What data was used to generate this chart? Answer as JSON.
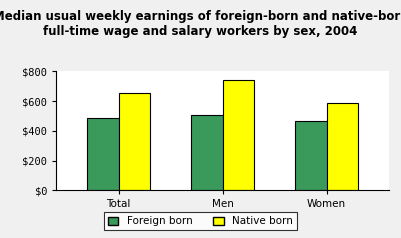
{
  "title_line1": "Median usual weekly earnings of foreign-born and native-born",
  "title_line2": "full-time wage and salary workers by sex, 2004",
  "categories": [
    "Total",
    "Men",
    "Women"
  ],
  "foreign_born": [
    490,
    510,
    465
  ],
  "native_born": [
    655,
    740,
    585
  ],
  "foreign_born_color": "#3a9a5c",
  "native_born_color": "#ffff00",
  "bar_edge_color": "#000000",
  "ylim": [
    0,
    800
  ],
  "yticks": [
    0,
    200,
    400,
    600,
    800
  ],
  "ytick_labels": [
    "$0",
    "$200",
    "$400",
    "$600",
    "$800"
  ],
  "legend_labels": [
    "Foreign born",
    "Native born"
  ],
  "background_color": "#f0f0f0",
  "plot_bg_color": "#ffffff",
  "bar_width": 0.3,
  "title_fontsize": 8.5,
  "tick_fontsize": 7.5,
  "legend_fontsize": 7.5
}
